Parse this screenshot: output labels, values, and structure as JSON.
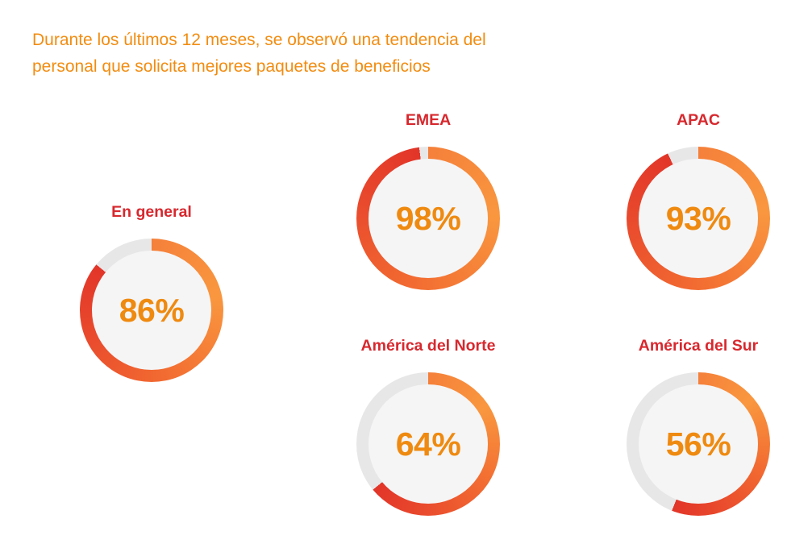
{
  "chart_data": {
    "type": "donut",
    "title_lines": [
      "Durante los últimos 12 meses, se observó una tendencia del",
      "personal que solicita mejores paquetes de beneficios"
    ],
    "unit": "%",
    "series": [
      {
        "label": "En general",
        "value": 86,
        "display": "86%"
      },
      {
        "label": "EMEA",
        "value": 98,
        "display": "98%"
      },
      {
        "label": "APAC",
        "value": 93,
        "display": "93%"
      },
      {
        "label": "América del Norte",
        "value": 64,
        "display": "64%"
      },
      {
        "label": "América del Sur",
        "value": 56,
        "display": "56%"
      }
    ],
    "arc_start": "top",
    "arc_direction": "clockwise",
    "arc_gradient_stops": [
      [
        0.0,
        "#F5803A"
      ],
      [
        0.25,
        "#F9973F"
      ],
      [
        0.55,
        "#F26B31"
      ],
      [
        0.8,
        "#E94A2D"
      ],
      [
        1.0,
        "#E23529"
      ]
    ],
    "colors": {
      "title": "#F28C10",
      "label": "#D7282E",
      "value": "#EF8A10",
      "track": "#E7E7E8",
      "hole": "#F5F5F6",
      "background": "#FFFFFF"
    }
  }
}
